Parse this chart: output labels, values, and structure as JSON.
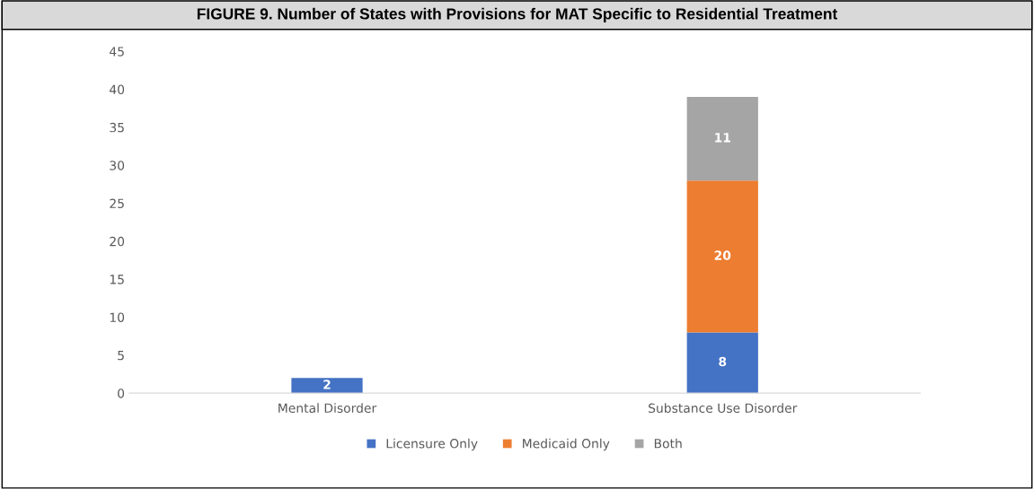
{
  "chart_data": {
    "type": "bar",
    "title": "FIGURE 9. Number of States with Provisions for MAT Specific to Residential Treatment",
    "categories": [
      "Mental Disorder",
      "Substance Use Disorder"
    ],
    "stacked": true,
    "series": [
      {
        "name": "Licensure Only",
        "color": "#4472c4",
        "values": [
          2,
          8
        ],
        "value_labels": [
          "2",
          "8"
        ]
      },
      {
        "name": "Medicaid Only",
        "color": "#ed7d31",
        "values": [
          0,
          20
        ],
        "value_labels": [
          null,
          "20"
        ]
      },
      {
        "name": "Both",
        "color": "#a5a5a5",
        "values": [
          0,
          11
        ],
        "value_labels": [
          null,
          "11"
        ]
      }
    ],
    "ylim": [
      0,
      45
    ],
    "yticks": [
      0,
      5,
      10,
      15,
      20,
      25,
      30,
      35,
      40,
      45
    ],
    "grid": false,
    "legend": "bottom"
  }
}
